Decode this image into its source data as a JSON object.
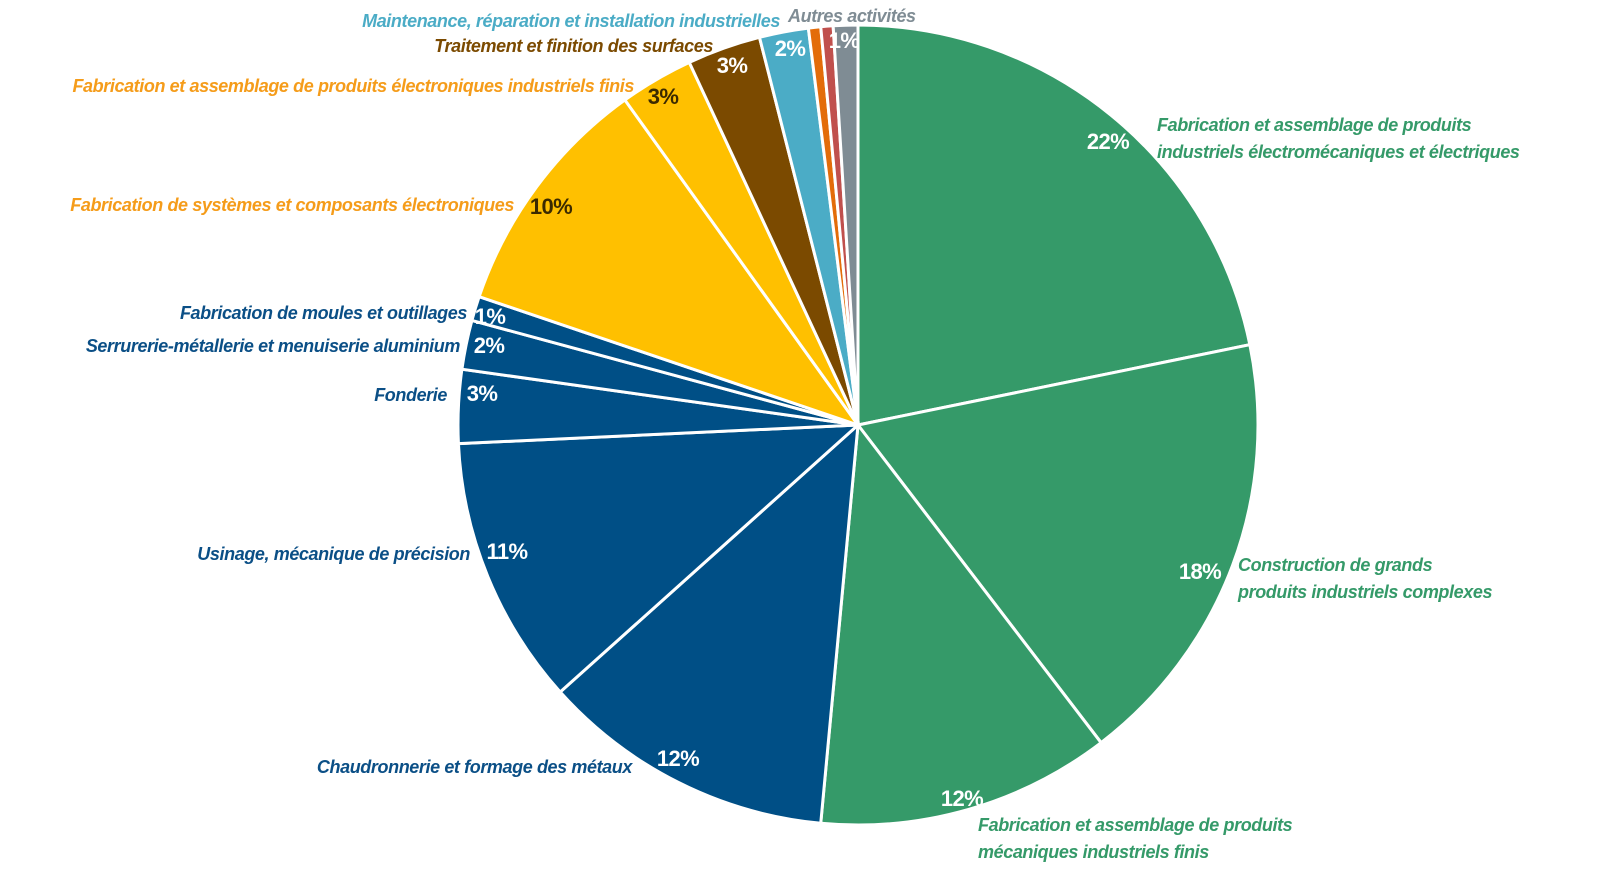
{
  "chart_data": {
    "type": "pie",
    "categories": [
      [
        "Fabrication et assemblage de produits",
        "industriels électromécaniques et électriques"
      ],
      [
        "Construction de grands",
        "produits industriels complexes"
      ],
      [
        "Fabrication et assemblage de produits",
        "mécaniques industriels finis"
      ],
      [
        "Chaudronnerie et formage des métaux"
      ],
      [
        "Usinage, mécanique de précision"
      ],
      [
        "Fonderie"
      ],
      [
        "Serrurerie-métallerie  et menuiserie aluminium"
      ],
      [
        "Fabrication de moules et outillages"
      ],
      [
        "Fabrication de systèmes et composants électroniques"
      ],
      [
        "Fabrication et assemblage de produits électroniques industriels finis"
      ],
      [
        "Traitement et finition des surfaces"
      ],
      [
        "Maintenance, réparation et installation industrielles"
      ],
      null,
      null,
      [
        "Autres activités"
      ]
    ],
    "values": [
      22,
      18,
      12,
      12,
      11,
      3,
      2,
      1,
      10,
      3,
      3,
      2,
      0.5,
      0.5,
      1
    ],
    "value_labels": [
      "22%",
      "18%",
      "12%",
      "12%",
      "11%",
      "3%",
      "2%",
      "1%",
      "10%",
      "3%",
      "3%",
      "2%",
      null,
      null,
      "1%"
    ],
    "colors": [
      "#359a69",
      "#359a69",
      "#359a69",
      "#004f86",
      "#004f86",
      "#004f86",
      "#004f86",
      "#004f86",
      "#ffc000",
      "#ffc000",
      "#7b4a00",
      "#4bacc6",
      "#e36c09",
      "#c0504d",
      "#7f8c94"
    ]
  }
}
